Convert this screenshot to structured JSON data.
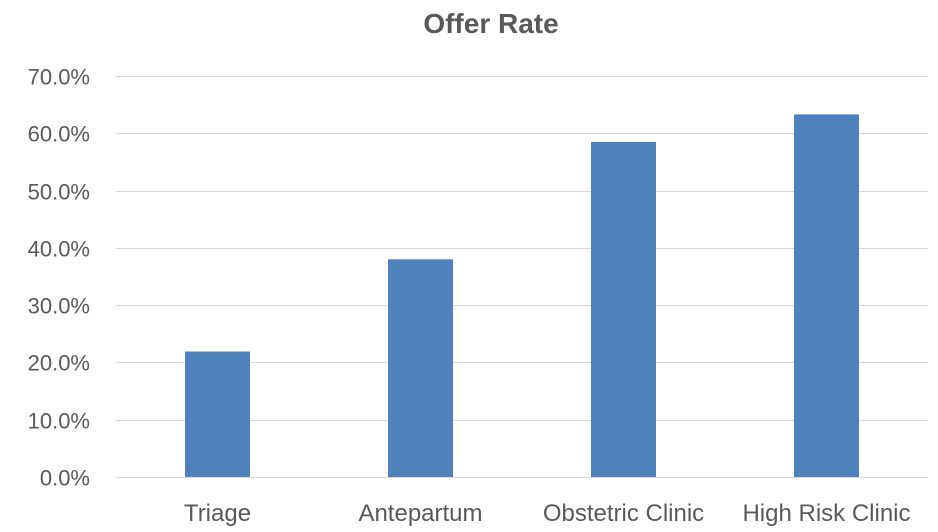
{
  "chart_data": {
    "type": "bar",
    "title": "Offer Rate",
    "categories": [
      "Triage",
      "Antepartum",
      "Obstetric Clinic",
      "High Risk Clinic"
    ],
    "values": [
      0.219,
      0.38,
      0.585,
      0.633
    ],
    "ylim": [
      0,
      0.7
    ],
    "yticks": [
      0,
      0.1,
      0.2,
      0.3,
      0.4,
      0.5,
      0.6,
      0.7
    ],
    "ytick_labels": [
      "0.0%",
      "10.0%",
      "20.0%",
      "30.0%",
      "40.0%",
      "50.0%",
      "60.0%",
      "70.0%"
    ],
    "xlabel": "",
    "ylabel": "",
    "grid": true,
    "legend": "none",
    "bar_color": "#4f81bd",
    "text_color": "#595959",
    "grid_color": "#d9d9d9"
  }
}
